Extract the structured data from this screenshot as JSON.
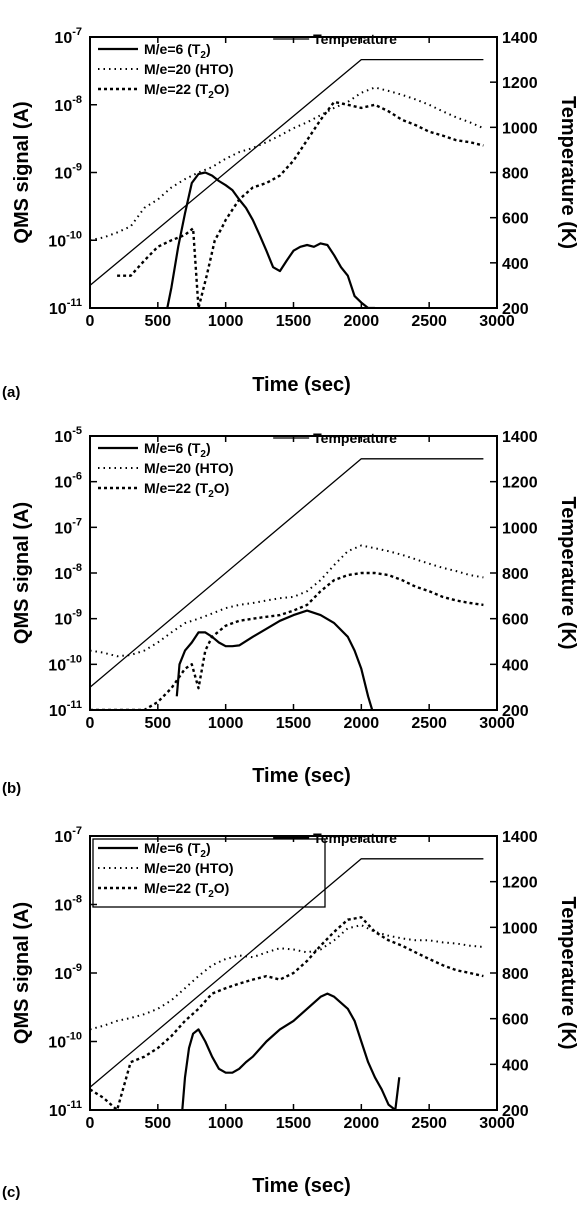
{
  "chart_data": [
    {
      "type": "line",
      "panel_label": "(a)",
      "xlabel": "Time (sec)",
      "ylabel": "QMS signal (A)",
      "y2label": "Temperature (K)",
      "xlim": [
        0,
        3000
      ],
      "ylim": [
        1e-11,
        1e-07
      ],
      "yscale": "log",
      "y2lim": [
        200,
        1400
      ],
      "x_ticks": [
        "0",
        "500",
        "1000",
        "1500",
        "2000",
        "2500",
        "3000"
      ],
      "y_tick_exps": [
        "-11",
        "-10",
        "-9",
        "-8",
        "-7"
      ],
      "y2_ticks": [
        "200",
        "400",
        "600",
        "800",
        "1000",
        "1200",
        "1400"
      ],
      "legend_boxed": false,
      "legend": [
        {
          "pre": "M/e=6 (T",
          "sub": "2",
          "post": ")",
          "style": "solid"
        },
        {
          "pre": "M/e=20 (HTO)",
          "sub": "",
          "post": "",
          "style": "dotted"
        },
        {
          "pre": "M/e=22 (T",
          "sub": "2",
          "post": "O)",
          "style": "dashed"
        }
      ],
      "temperature_label": "Temperature",
      "series": [
        {
          "name": "M/e=6 (T2)",
          "style": "solid",
          "x": [
            570,
            600,
            650,
            700,
            750,
            800,
            850,
            900,
            950,
            1000,
            1050,
            1100,
            1150,
            1200,
            1250,
            1300,
            1350,
            1400,
            1450,
            1500,
            1550,
            1600,
            1650,
            1700,
            1750,
            1800,
            1850,
            1900,
            1950,
            2000,
            2050,
            2100
          ],
          "y": [
            1e-11,
            2e-11,
            8e-11,
            2.5e-10,
            7e-10,
            9.5e-10,
            1e-09,
            9e-10,
            7.5e-10,
            6.5e-10,
            5.5e-10,
            4e-10,
            3e-10,
            2e-10,
            1.2e-10,
            7e-11,
            4e-11,
            3.5e-11,
            5e-11,
            7e-11,
            8e-11,
            8.5e-11,
            8e-11,
            9e-11,
            8.5e-11,
            6e-11,
            4e-11,
            3e-11,
            1.5e-11,
            1.2e-11,
            1e-11,
            1e-11
          ]
        },
        {
          "name": "M/e=20 (HTO)",
          "style": "dotted",
          "x": [
            0,
            100,
            200,
            300,
            400,
            500,
            600,
            700,
            800,
            900,
            1000,
            1100,
            1200,
            1300,
            1400,
            1500,
            1600,
            1700,
            1800,
            1900,
            2000,
            2100,
            2200,
            2300,
            2400,
            2500,
            2600,
            2700,
            2800,
            2900
          ],
          "y": [
            1e-10,
            1.1e-10,
            1.3e-10,
            1.6e-10,
            3e-10,
            4e-10,
            6e-10,
            8e-10,
            1e-09,
            1.2e-09,
            1.6e-09,
            2e-09,
            2.3e-09,
            2.8e-09,
            3.5e-09,
            4.5e-09,
            5.5e-09,
            7e-09,
            9e-09,
            1.1e-08,
            1.5e-08,
            1.8e-08,
            1.6e-08,
            1.4e-08,
            1.2e-08,
            1e-08,
            8e-09,
            6.5e-09,
            5.5e-09,
            4.5e-09
          ]
        },
        {
          "name": "M/e=22 (T2O)",
          "style": "dashed",
          "x": [
            200,
            300,
            400,
            500,
            600,
            700,
            760,
            800,
            860,
            920,
            970,
            1000,
            1100,
            1200,
            1300,
            1400,
            1500,
            1600,
            1700,
            1800,
            1900,
            2000,
            2100,
            2200,
            2300,
            2400,
            2500,
            2600,
            2700,
            2800,
            2900
          ],
          "y": [
            3e-11,
            3e-11,
            5e-11,
            8e-11,
            1e-10,
            1.2e-10,
            1.5e-10,
            1e-11,
            3e-11,
            1e-10,
            1.5e-10,
            2e-10,
            4e-10,
            6e-10,
            7e-10,
            9e-10,
            1.5e-09,
            3e-09,
            6e-09,
            1.1e-08,
            1e-08,
            9e-09,
            1e-08,
            8e-09,
            6e-09,
            5e-09,
            4e-09,
            3.5e-09,
            3e-09,
            2.8e-09,
            2.5e-09
          ]
        },
        {
          "name": "Temperature",
          "axis": "right",
          "style": "thin",
          "x": [
            0,
            2000,
            2900
          ],
          "y": [
            300,
            1300,
            1300
          ]
        }
      ]
    },
    {
      "type": "line",
      "panel_label": "(b)",
      "xlabel": "Time (sec)",
      "ylabel": "QMS signal (A)",
      "y2label": "Temperature (K)",
      "xlim": [
        0,
        3000
      ],
      "ylim": [
        1e-11,
        1e-05
      ],
      "yscale": "log",
      "y2lim": [
        200,
        1400
      ],
      "x_ticks": [
        "0",
        "500",
        "1000",
        "1500",
        "2000",
        "2500",
        "3000"
      ],
      "y_tick_exps": [
        "-11",
        "-10",
        "-9",
        "-8",
        "-7",
        "-6",
        "-5"
      ],
      "y2_ticks": [
        "200",
        "400",
        "600",
        "800",
        "1000",
        "1200",
        "1400"
      ],
      "legend_boxed": false,
      "legend": [
        {
          "pre": "M/e=6 (T",
          "sub": "2",
          "post": ")",
          "style": "solid"
        },
        {
          "pre": "M/e=20 (HTO)",
          "sub": "",
          "post": "",
          "style": "dotted"
        },
        {
          "pre": "M/e=22 (T",
          "sub": "2",
          "post": "O)",
          "style": "dashed"
        }
      ],
      "temperature_label": "Temperature",
      "series": [
        {
          "name": "M/e=6 (T2)",
          "style": "solid",
          "x": [
            640,
            660,
            700,
            750,
            800,
            850,
            900,
            950,
            1000,
            1050,
            1100,
            1200,
            1300,
            1400,
            1500,
            1600,
            1700,
            1800,
            1900,
            1950,
            2000,
            2050,
            2080
          ],
          "y": [
            2e-11,
            1e-10,
            2e-10,
            3e-10,
            5e-10,
            5e-10,
            4e-10,
            3e-10,
            2.5e-10,
            2.5e-10,
            2.6e-10,
            4e-10,
            6e-10,
            9e-10,
            1.2e-09,
            1.5e-09,
            1.2e-09,
            8e-10,
            4e-10,
            2e-10,
            8e-11,
            2e-11,
            1e-11
          ]
        },
        {
          "name": "M/e=20 (HTO)",
          "style": "dotted",
          "x": [
            0,
            100,
            200,
            300,
            400,
            500,
            600,
            700,
            800,
            900,
            1000,
            1100,
            1200,
            1300,
            1400,
            1500,
            1600,
            1700,
            1800,
            1900,
            2000,
            2100,
            2200,
            2300,
            2400,
            2500,
            2600,
            2700,
            2800,
            2900
          ],
          "y": [
            2e-10,
            1.8e-10,
            1.5e-10,
            1.6e-10,
            2e-10,
            3e-10,
            5e-10,
            8e-10,
            1e-09,
            1.3e-09,
            1.7e-09,
            2e-09,
            2.2e-09,
            2.5e-09,
            2.8e-09,
            3e-09,
            4e-09,
            7e-09,
            1.5e-08,
            3e-08,
            4e-08,
            3.5e-08,
            3e-08,
            2.5e-08,
            2e-08,
            1.6e-08,
            1.3e-08,
            1.1e-08,
            9e-09,
            8e-09
          ]
        },
        {
          "name": "M/e=22 (T2O)",
          "style": "dashed",
          "x": [
            0,
            100,
            200,
            300,
            400,
            500,
            600,
            700,
            750,
            800,
            850,
            900,
            1000,
            1100,
            1200,
            1300,
            1400,
            1500,
            1600,
            1700,
            1800,
            1900,
            2000,
            2100,
            2200,
            2300,
            2400,
            2500,
            2600,
            2700,
            2800,
            2900
          ],
          "y": [
            1e-11,
            1e-11,
            1e-11,
            1e-11,
            1e-11,
            1.5e-11,
            3e-11,
            8e-11,
            1e-10,
            3e-11,
            2e-10,
            4e-10,
            7e-10,
            9e-10,
            1e-09,
            1.1e-09,
            1.2e-09,
            1.5e-09,
            2e-09,
            4e-09,
            7e-09,
            9e-09,
            1e-08,
            1e-08,
            9e-09,
            7e-09,
            5e-09,
            4e-09,
            3e-09,
            2.5e-09,
            2.2e-09,
            2e-09
          ]
        },
        {
          "name": "Temperature",
          "axis": "right",
          "style": "thin",
          "x": [
            0,
            2000,
            2900
          ],
          "y": [
            300,
            1300,
            1300
          ]
        }
      ]
    },
    {
      "type": "line",
      "panel_label": "(c)",
      "xlabel": "Time (sec)",
      "ylabel": "QMS signal (A)",
      "y2label": "Temperature (K)",
      "xlim": [
        0,
        3000
      ],
      "ylim": [
        1e-11,
        1e-07
      ],
      "yscale": "log",
      "y2lim": [
        200,
        1400
      ],
      "x_ticks": [
        "0",
        "500",
        "1000",
        "1500",
        "2000",
        "2500",
        "3000"
      ],
      "y_tick_exps": [
        "-11",
        "-10",
        "-9",
        "-8",
        "-7"
      ],
      "y2_ticks": [
        "200",
        "400",
        "600",
        "800",
        "1000",
        "1200",
        "1400"
      ],
      "legend_boxed": true,
      "legend": [
        {
          "pre": "M/e=6 (T",
          "sub": "2",
          "post": ")",
          "style": "solid"
        },
        {
          "pre": "M/e=20 (HTO)",
          "sub": "",
          "post": "",
          "style": "dotted"
        },
        {
          "pre": "M/e=22 (T",
          "sub": "2",
          "post": "O)",
          "style": "dashed"
        }
      ],
      "temperature_label": "Temperature",
      "series": [
        {
          "name": "M/e=6 (T2)",
          "style": "solid",
          "x": [
            680,
            700,
            730,
            760,
            800,
            850,
            900,
            950,
            1000,
            1050,
            1100,
            1150,
            1200,
            1300,
            1400,
            1500,
            1600,
            1700,
            1750,
            1800,
            1900,
            1950,
            2000,
            2050,
            2100,
            2150,
            2200,
            2250,
            2280
          ],
          "y": [
            1e-11,
            3e-11,
            8e-11,
            1.3e-10,
            1.5e-10,
            1e-10,
            6e-11,
            4e-11,
            3.5e-11,
            3.5e-11,
            4e-11,
            5e-11,
            6e-11,
            1e-10,
            1.5e-10,
            2e-10,
            3e-10,
            4.5e-10,
            5e-10,
            4.5e-10,
            3e-10,
            2e-10,
            1e-10,
            5e-11,
            3e-11,
            2e-11,
            1.2e-11,
            1e-11,
            3e-11
          ]
        },
        {
          "name": "M/e=20 (HTO)",
          "style": "dotted",
          "x": [
            0,
            100,
            200,
            300,
            400,
            500,
            600,
            700,
            800,
            900,
            1000,
            1100,
            1200,
            1300,
            1400,
            1500,
            1600,
            1700,
            1800,
            1900,
            2000,
            2100,
            2200,
            2300,
            2400,
            2500,
            2600,
            2700,
            2800,
            2900
          ],
          "y": [
            1.5e-10,
            1.7e-10,
            2e-10,
            2.2e-10,
            2.5e-10,
            3e-10,
            4e-10,
            6e-10,
            9e-10,
            1.3e-09,
            1.6e-09,
            1.8e-09,
            1.7e-09,
            2e-09,
            2.3e-09,
            2.2e-09,
            2e-09,
            2.2e-09,
            3e-09,
            4.5e-09,
            5e-09,
            4e-09,
            3.5e-09,
            3.2e-09,
            3e-09,
            3e-09,
            2.8e-09,
            2.7e-09,
            2.5e-09,
            2.4e-09
          ]
        },
        {
          "name": "M/e=22 (T2O)",
          "style": "dashed",
          "x": [
            0,
            100,
            200,
            300,
            400,
            500,
            600,
            700,
            800,
            900,
            1000,
            1100,
            1200,
            1300,
            1400,
            1500,
            1600,
            1700,
            1800,
            1900,
            2000,
            2100,
            2200,
            2300,
            2400,
            2500,
            2600,
            2700,
            2800,
            2900
          ],
          "y": [
            2e-11,
            1.5e-11,
            1e-11,
            5e-11,
            6e-11,
            8e-11,
            1.2e-10,
            2e-10,
            3e-10,
            5e-10,
            6e-10,
            7e-10,
            8e-10,
            9e-10,
            8e-10,
            1e-09,
            1.5e-09,
            2.5e-09,
            4e-09,
            6e-09,
            6.5e-09,
            4e-09,
            3e-09,
            2.5e-09,
            2e-09,
            1.6e-09,
            1.3e-09,
            1.1e-09,
            1e-09,
            9e-10
          ]
        },
        {
          "name": "Temperature",
          "axis": "right",
          "style": "thin",
          "x": [
            0,
            2000,
            2900
          ],
          "y": [
            300,
            1300,
            1300
          ]
        }
      ]
    }
  ]
}
